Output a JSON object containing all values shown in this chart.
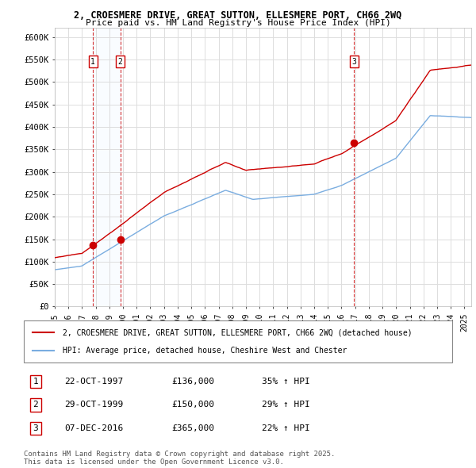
{
  "title_line1": "2, CROESMERE DRIVE, GREAT SUTTON, ELLESMERE PORT, CH66 2WQ",
  "title_line2": "Price paid vs. HM Land Registry's House Price Index (HPI)",
  "ylim": [
    0,
    620000
  ],
  "yticks": [
    0,
    50000,
    100000,
    150000,
    200000,
    250000,
    300000,
    350000,
    400000,
    450000,
    500000,
    550000,
    600000
  ],
  "ytick_labels": [
    "£0",
    "£50K",
    "£100K",
    "£150K",
    "£200K",
    "£250K",
    "£300K",
    "£350K",
    "£400K",
    "£450K",
    "£500K",
    "£550K",
    "£600K"
  ],
  "legend_line1": "2, CROESMERE DRIVE, GREAT SUTTON, ELLESMERE PORT, CH66 2WQ (detached house)",
  "legend_line2": "HPI: Average price, detached house, Cheshire West and Chester",
  "sale1_date": "22-OCT-1997",
  "sale1_price_label": "£136,000",
  "sale1_price": 136000,
  "sale1_hpi": "35% ↑ HPI",
  "sale1_x": 1997.8,
  "sale2_date": "29-OCT-1999",
  "sale2_price_label": "£150,000",
  "sale2_price": 150000,
  "sale2_hpi": "29% ↑ HPI",
  "sale2_x": 1999.8,
  "sale3_date": "07-DEC-2016",
  "sale3_price_label": "£365,000",
  "sale3_price": 365000,
  "sale3_hpi": "22% ↑ HPI",
  "sale3_x": 2016.92,
  "footer": "Contains HM Land Registry data © Crown copyright and database right 2025.\nThis data is licensed under the Open Government Licence v3.0.",
  "line_color_red": "#cc0000",
  "line_color_blue": "#7aade0",
  "shade_color": "#ddeeff",
  "vline_color": "#cc0000",
  "bg_color": "#ffffff",
  "grid_color": "#dddddd",
  "xlim_start": 1995.0,
  "xlim_end": 2025.5
}
